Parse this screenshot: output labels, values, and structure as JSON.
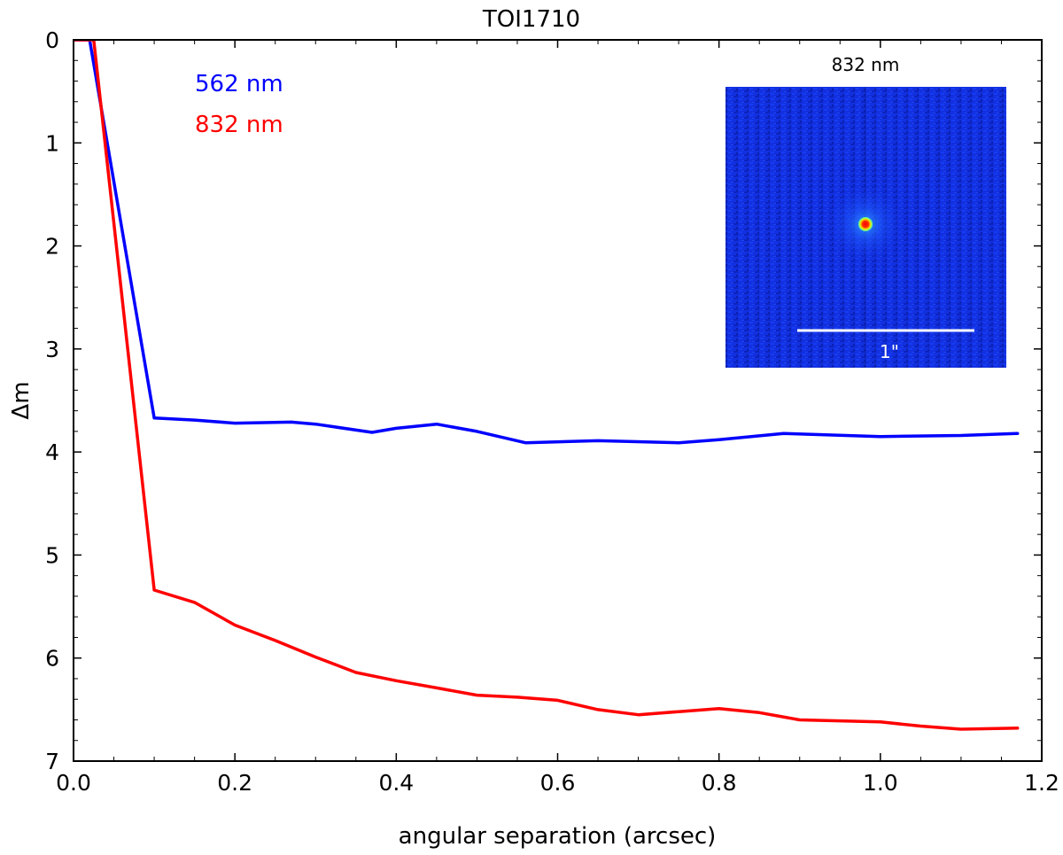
{
  "chart_data": {
    "type": "line",
    "title": "TOI1710",
    "xlabel": "angular separation (arcsec)",
    "ylabel": "Δm",
    "xlim": [
      0.0,
      1.2
    ],
    "ylim": [
      7,
      0
    ],
    "y_inverted": true,
    "x_ticks": [
      0.0,
      0.2,
      0.4,
      0.6,
      0.8,
      1.0,
      1.2
    ],
    "x_tick_labels": [
      "0.0",
      "0.2",
      "0.4",
      "0.6",
      "0.8",
      "1.0",
      "1.2"
    ],
    "y_ticks": [
      0,
      1,
      2,
      3,
      4,
      5,
      6,
      7
    ],
    "y_tick_labels": [
      "0",
      "1",
      "2",
      "3",
      "4",
      "5",
      "6",
      "7"
    ],
    "grid": false,
    "legend_placement": "top-left",
    "series": [
      {
        "name": "562 nm",
        "color": "#0000ff",
        "x": [
          0.0,
          0.02,
          0.1,
          0.15,
          0.2,
          0.27,
          0.3,
          0.37,
          0.4,
          0.45,
          0.5,
          0.56,
          0.65,
          0.75,
          0.8,
          0.88,
          1.0,
          1.1,
          1.17
        ],
        "values": [
          0.0,
          0.0,
          3.67,
          3.69,
          3.72,
          3.71,
          3.73,
          3.81,
          3.77,
          3.73,
          3.8,
          3.91,
          3.89,
          3.91,
          3.88,
          3.82,
          3.85,
          3.84,
          3.82
        ]
      },
      {
        "name": "832 nm",
        "color": "#ff0000",
        "x": [
          0.0,
          0.025,
          0.1,
          0.15,
          0.2,
          0.25,
          0.3,
          0.35,
          0.4,
          0.45,
          0.5,
          0.55,
          0.6,
          0.65,
          0.7,
          0.75,
          0.8,
          0.85,
          0.9,
          1.0,
          1.05,
          1.1,
          1.17
        ],
        "values": [
          0.0,
          0.0,
          5.34,
          5.46,
          5.68,
          5.83,
          5.99,
          6.14,
          6.22,
          6.29,
          6.36,
          6.38,
          6.41,
          6.5,
          6.55,
          6.52,
          6.49,
          6.53,
          6.6,
          6.62,
          6.66,
          6.69,
          6.68
        ]
      }
    ],
    "inset": {
      "label": "832 nm",
      "scale_bar_label": "1\"",
      "background_color": "#1030e6",
      "point_source_color": "#ff2000"
    }
  }
}
